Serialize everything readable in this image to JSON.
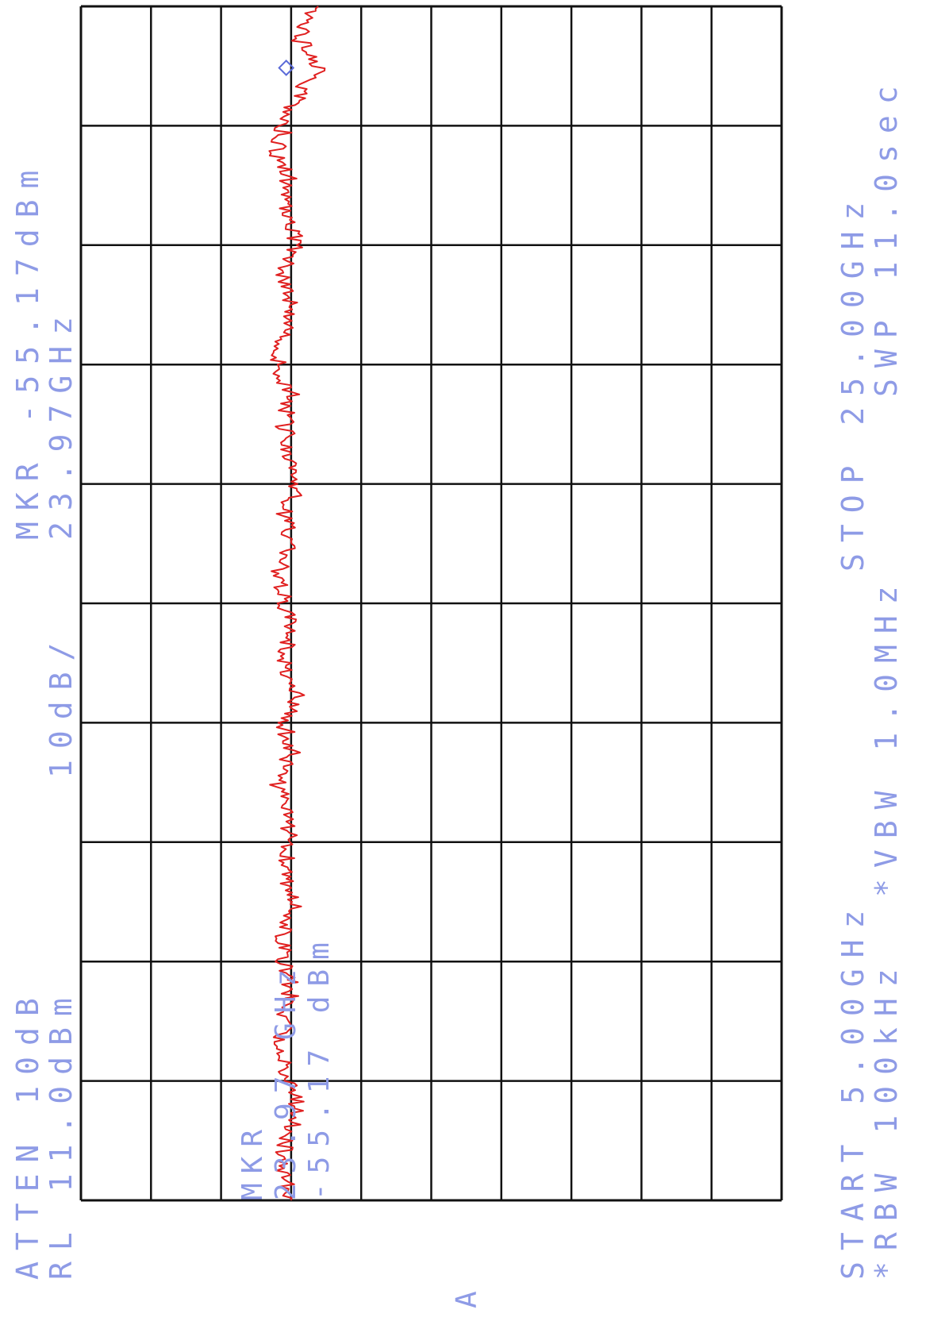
{
  "annotations": {
    "atten": "ATTEN 10dB",
    "ref_level": "RL 11.0dBm",
    "scale": "10dB/",
    "marker_header": "MKR -55.17dBm",
    "marker_header_freq": "23.97GHz",
    "marker_box_label": "MKR",
    "marker_box_freq": "23.97 GHz",
    "marker_box_level": "-55.17 dBm",
    "start": "START 5.00GHz",
    "stop": "STOP 25.00GHz",
    "rbw": "*RBW 100kHz",
    "vbw": "*VBW 1.0MHz",
    "sweep": "SWP 11.0sec",
    "trace_tag": "A"
  },
  "colors": {
    "trace": "#e02020",
    "grid": "#111111",
    "annotation": "#8e9be6",
    "marker": "#5a6ad8"
  },
  "chart_data": {
    "type": "line",
    "orientation": "rotated-90-ccw",
    "x_axis": {
      "start_GHz": 5.0,
      "stop_GHz": 25.0,
      "divisions": 10
    },
    "y_axis": {
      "ref_level_dBm": 11.0,
      "scale_dB_per_div": 10,
      "divisions": 10
    },
    "series": [
      {
        "freq_GHz": [
          5.0,
          5.5,
          6.0,
          6.5,
          7.0,
          7.5,
          8.0,
          8.5,
          9.0,
          9.5,
          10.0,
          10.5,
          11.0,
          11.5,
          12.0,
          12.5,
          13.0,
          13.5,
          14.0,
          14.5,
          15.0,
          15.5,
          16.0,
          16.5,
          17.0,
          17.5,
          18.0,
          18.5,
          19.0,
          19.5,
          20.0,
          20.5,
          21.0,
          21.5,
          22.0,
          22.5,
          23.0,
          23.5,
          23.97,
          24.5,
          25.0
        ],
        "level_dBm": [
          -59,
          -60,
          -60,
          -58,
          -59,
          -61,
          -60,
          -59,
          -60,
          -60,
          -58,
          -60,
          -59,
          -60,
          -61,
          -59,
          -60,
          -58,
          -60,
          -59,
          -60,
          -61,
          -59,
          -60,
          -58,
          -59,
          -60,
          -59,
          -61,
          -60,
          -59,
          -60,
          -58,
          -60,
          -59,
          -61,
          -60,
          -58,
          -55.17,
          -58,
          -56
        ]
      }
    ],
    "marker": {
      "freq_GHz": 23.97,
      "level_dBm": -55.17
    }
  }
}
